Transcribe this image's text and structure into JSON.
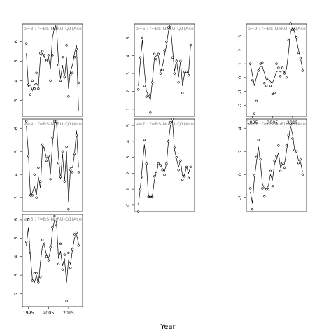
{
  "chart_data": {
    "type": "scatter",
    "xlabel": "Year",
    "xlim": [
      1992,
      2022
    ],
    "xticks": [
      1995,
      2005,
      2015
    ],
    "panels": [
      {
        "title": "a=3 : f=BS-NoRU-Q1(Acoustic)",
        "ylim": [
          2.2,
          6.9
        ],
        "yticks": [
          3,
          4,
          5,
          6
        ],
        "x": [
          1994,
          1995,
          1996,
          1997,
          1998,
          1999,
          2000,
          2001,
          2002,
          2003,
          2004,
          2005,
          2006,
          2007,
          2008,
          2009,
          2010,
          2011,
          2012,
          2013,
          2014,
          2015,
          2016,
          2017,
          2018,
          2019,
          2020
        ],
        "y": [
          5.9,
          3.8,
          3.3,
          4.0,
          3.6,
          4.4,
          3.6,
          5.4,
          5.5,
          5.3,
          5.0,
          5.3,
          4.0,
          5.3,
          6.7,
          6.8,
          4.8,
          4.0,
          5.2,
          4.2,
          5.8,
          3.2,
          4.3,
          4.4,
          5.2,
          5.6,
          3.9
        ],
        "fit": [
          5.4,
          3.7,
          3.8,
          3.5,
          3.8,
          3.9,
          3.7,
          5.2,
          5.4,
          5.2,
          5.0,
          5.2,
          4.6,
          6.2,
          6.7,
          6.8,
          5.0,
          4.1,
          4.8,
          4.1,
          5.2,
          3.6,
          4.5,
          4.8,
          5.4,
          5.8,
          2.5
        ]
      },
      {
        "title": "a=6 : f=BS-NoRU-Q1(Acoustic)",
        "ylim": [
          0.6,
          5.8
        ],
        "yticks": [
          1,
          2,
          3,
          4,
          5
        ],
        "x": [
          1994,
          1995,
          1996,
          1997,
          1998,
          1999,
          2000,
          2001,
          2002,
          2003,
          2004,
          2005,
          2006,
          2007,
          2008,
          2009,
          2010,
          2011,
          2012,
          2013,
          2014,
          2015,
          2016,
          2017,
          2018,
          2019,
          2020
        ],
        "y": [
          2.1,
          3.9,
          5.0,
          2.3,
          1.7,
          1.8,
          0.8,
          2.5,
          4.1,
          3.8,
          4.1,
          3.0,
          3.2,
          4.3,
          4.8,
          5.6,
          5.7,
          3.9,
          3.0,
          3.7,
          2.5,
          3.7,
          1.9,
          3.1,
          3.1,
          2.9,
          4.6
        ],
        "fit": [
          2.3,
          3.7,
          4.9,
          3.2,
          2.0,
          1.8,
          1.5,
          2.6,
          3.9,
          4.0,
          4.0,
          3.1,
          3.4,
          4.0,
          4.6,
          5.4,
          5.7,
          4.4,
          3.1,
          3.8,
          2.8,
          3.7,
          2.3,
          3.0,
          3.1,
          3.0,
          4.6
        ]
      },
      {
        "title": "a=9 : f=BS-NoRU-Q1(Acoustic)",
        "ylim": [
          -2.8,
          3.9
        ],
        "yticks": [
          -2,
          -1,
          0,
          1,
          2,
          3
        ],
        "x": [
          1994,
          1995,
          1996,
          1997,
          1998,
          1999,
          2000,
          2001,
          2002,
          2003,
          2004,
          2005,
          2006,
          2007,
          2008,
          2009,
          2010,
          2011,
          2012,
          2013,
          2014,
          2015,
          2016,
          2017,
          2018,
          2019,
          2020
        ],
        "y": [
          1.0,
          -0.2,
          -2.6,
          -1.7,
          0.5,
          1.0,
          1.1,
          -0.4,
          -0.6,
          -0.1,
          -0.6,
          -1.2,
          -1.1,
          1.0,
          0.7,
          0.1,
          0.7,
          0.3,
          0.0,
          2.7,
          3.9,
          3.5,
          3.5,
          2.9,
          1.8,
          1.4,
          0.5
        ],
        "fit": [
          1.0,
          0.2,
          -0.6,
          0.0,
          0.6,
          0.8,
          0.8,
          0.3,
          -0.2,
          -0.1,
          -0.3,
          -0.4,
          0.0,
          0.4,
          0.5,
          0.4,
          0.5,
          0.4,
          0.6,
          1.8,
          3.3,
          3.6,
          3.3,
          2.7,
          2.0,
          1.4,
          0.6
        ]
      },
      {
        "title": "a=4 : f=BS-NoRU-Q1(Acoustic)",
        "ylim": [
          2.4,
          6.4
        ],
        "yticks": [
          3,
          4,
          5,
          6
        ],
        "x": [
          1994,
          1995,
          1996,
          1997,
          1998,
          1999,
          2000,
          2001,
          2002,
          2003,
          2004,
          2005,
          2006,
          2007,
          2008,
          2009,
          2010,
          2011,
          2012,
          2013,
          2014,
          2015,
          2016,
          2017,
          2018,
          2019,
          2020
        ],
        "y": [
          6.3,
          4.8,
          3.1,
          3.1,
          4.0,
          3.0,
          4.3,
          3.7,
          5.3,
          5.2,
          4.6,
          4.8,
          3.8,
          5.6,
          6.3,
          6.3,
          4.5,
          3.9,
          5.0,
          3.7,
          5.2,
          2.5,
          4.2,
          4.1,
          4.9,
          5.7,
          4.1
        ],
        "fit": [
          6.1,
          4.9,
          3.1,
          3.2,
          3.5,
          3.1,
          3.9,
          3.4,
          5.2,
          5.1,
          4.7,
          4.8,
          4.0,
          5.3,
          6.2,
          6.3,
          4.8,
          3.8,
          4.9,
          3.7,
          5.0,
          2.8,
          4.3,
          4.3,
          4.9,
          5.9,
          4.3
        ]
      },
      {
        "title": "a=7 : f=BS-NoRU-Q1(Acoustic)",
        "ylim": [
          -0.4,
          5.4
        ],
        "yticks": [
          0,
          1,
          2,
          3,
          4,
          5
        ],
        "x": [
          1994,
          1995,
          1996,
          1997,
          1998,
          1999,
          2000,
          2001,
          2002,
          2003,
          2004,
          2005,
          2006,
          2007,
          2008,
          2009,
          2010,
          2011,
          2012,
          2013,
          2014,
          2015,
          2016,
          2017,
          2018,
          2019,
          2020
        ],
        "y": [
          -0.4,
          1.0,
          1.7,
          4.1,
          2.6,
          0.5,
          0.5,
          0.5,
          1.8,
          2.0,
          2.6,
          2.5,
          2.2,
          1.9,
          2.6,
          4.0,
          5.2,
          5.4,
          3.6,
          3.0,
          2.2,
          2.8,
          1.6,
          1.8,
          2.4,
          1.7,
          2.4
        ],
        "fit": [
          0.0,
          1.1,
          2.5,
          3.8,
          2.6,
          0.6,
          0.5,
          0.6,
          1.6,
          2.0,
          2.6,
          2.5,
          2.3,
          2.1,
          2.6,
          4.0,
          5.0,
          5.3,
          3.5,
          2.9,
          2.4,
          2.8,
          1.8,
          1.9,
          2.4,
          2.0,
          2.4
        ]
      },
      {
        "title": "a=8 : f=BS-NoRU-Q1(Acoustic)",
        "ylim": [
          -3.2,
          4.8
        ],
        "yticks": [
          -2,
          0,
          2,
          4
        ],
        "x": [
          1994,
          1995,
          1996,
          1997,
          1998,
          1999,
          2000,
          2001,
          2002,
          2003,
          2004,
          2005,
          2006,
          2007,
          2008,
          2009,
          2010,
          2011,
          2012,
          2013,
          2014,
          2015,
          2016,
          2017,
          2018,
          2019,
          2020
        ],
        "y": [
          -1.2,
          -3.0,
          -0.1,
          1.5,
          3.0,
          1.3,
          -1.2,
          -1.9,
          -1.3,
          -1.3,
          0.3,
          -1.0,
          1.2,
          1.6,
          2.5,
          0.3,
          1.0,
          0.6,
          2.5,
          3.4,
          4.4,
          3.1,
          2.1,
          2.0,
          1.0,
          1.3,
          0.0
        ],
        "fit": [
          -1.5,
          -2.5,
          -0.3,
          1.0,
          2.4,
          1.0,
          -0.8,
          -1.2,
          -1.2,
          -1.0,
          0.0,
          -0.5,
          0.9,
          1.3,
          1.9,
          0.6,
          0.9,
          0.9,
          2.0,
          3.1,
          4.2,
          3.5,
          2.2,
          2.0,
          1.2,
          1.1,
          0.2
        ]
      },
      {
        "title": "a=5 : f=BS-NoRU-Q1(Acoustic)",
        "ylim": [
          1.3,
          6.3
        ],
        "yticks": [
          2,
          3,
          4,
          5,
          6
        ],
        "x": [
          1994,
          1995,
          1996,
          1997,
          1998,
          1999,
          2000,
          2001,
          2002,
          2003,
          2004,
          2005,
          2006,
          2007,
          2008,
          2009,
          2010,
          2011,
          2012,
          2013,
          2014,
          2015,
          2016,
          2017,
          2018,
          2019,
          2020
        ],
        "y": [
          4.8,
          6.0,
          4.2,
          2.7,
          3.1,
          3.1,
          2.6,
          2.9,
          4.9,
          4.7,
          4.0,
          3.8,
          4.5,
          5.6,
          6.2,
          5.7,
          3.6,
          4.7,
          3.3,
          4.1,
          1.6,
          4.2,
          3.4,
          4.4,
          5.2,
          5.3,
          4.6
        ],
        "fit": [
          4.6,
          5.6,
          4.0,
          2.8,
          2.6,
          3.0,
          2.5,
          3.7,
          4.6,
          4.6,
          4.1,
          3.9,
          4.3,
          5.4,
          6.0,
          5.9,
          3.9,
          4.3,
          3.5,
          3.9,
          2.6,
          3.8,
          3.6,
          4.4,
          5.0,
          5.2,
          4.7
        ]
      }
    ]
  }
}
